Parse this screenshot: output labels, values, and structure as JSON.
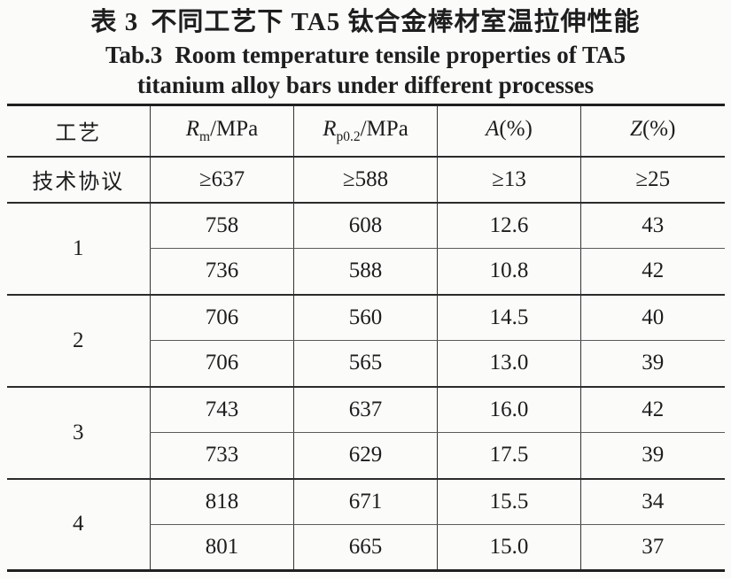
{
  "titles": {
    "zh_prefix": "表 3",
    "zh_text": "不同工艺下 TA5 钛合金棒材室温拉伸性能",
    "en_prefix": "Tab.3",
    "en_line1": "Room temperature tensile properties of TA5",
    "en_line2": "titanium alloy bars under different processes"
  },
  "table": {
    "columns": [
      {
        "label": "工艺"
      },
      {
        "symbol": "R",
        "sub": "m",
        "unit": "/MPa"
      },
      {
        "symbol": "R",
        "sub": "p0.2",
        "unit": "/MPa"
      },
      {
        "symbol": "A",
        "sub": "",
        "unit": "(%)"
      },
      {
        "symbol": "Z",
        "sub": "",
        "unit": "(%)"
      }
    ],
    "spec_row": {
      "label": "技术协议",
      "rm": "≥637",
      "rp02": "≥588",
      "a": "≥13",
      "z": "≥25"
    },
    "groups": [
      {
        "process": "1",
        "rows": [
          [
            "758",
            "608",
            "12.6",
            "43"
          ],
          [
            "736",
            "588",
            "10.8",
            "42"
          ]
        ]
      },
      {
        "process": "2",
        "rows": [
          [
            "706",
            "560",
            "14.5",
            "40"
          ],
          [
            "706",
            "565",
            "13.0",
            "39"
          ]
        ]
      },
      {
        "process": "3",
        "rows": [
          [
            "743",
            "637",
            "16.0",
            "42"
          ],
          [
            "733",
            "629",
            "17.5",
            "39"
          ]
        ]
      },
      {
        "process": "4",
        "rows": [
          [
            "818",
            "671",
            "15.5",
            "34"
          ],
          [
            "801",
            "665",
            "15.0",
            "37"
          ]
        ]
      }
    ]
  },
  "chart_data": {
    "type": "table",
    "title": "表 3 不同工艺下 TA5 钛合金棒材室温拉伸性能 / Tab.3 Room temperature tensile properties of TA5 titanium alloy bars under different processes",
    "columns": [
      "工艺",
      "Rm/MPa",
      "Rp0.2/MPa",
      "A(%)",
      "Z(%)"
    ],
    "rows": [
      [
        "技术协议",
        "≥637",
        "≥588",
        "≥13",
        "≥25"
      ],
      [
        "1",
        "758",
        "608",
        "12.6",
        "43"
      ],
      [
        "1",
        "736",
        "588",
        "10.8",
        "42"
      ],
      [
        "2",
        "706",
        "560",
        "14.5",
        "40"
      ],
      [
        "2",
        "706",
        "565",
        "13.0",
        "39"
      ],
      [
        "3",
        "743",
        "637",
        "16.0",
        "42"
      ],
      [
        "3",
        "733",
        "629",
        "17.5",
        "39"
      ],
      [
        "4",
        "818",
        "671",
        "15.5",
        "34"
      ],
      [
        "4",
        "801",
        "665",
        "15.0",
        "37"
      ]
    ]
  },
  "colors": {
    "text": "#1e1e1e",
    "rule_heavy": "#1f1f1f",
    "rule_medium": "#2b2b2b",
    "rule_light": "#5a5a5a",
    "background": "#fbfbf9"
  }
}
